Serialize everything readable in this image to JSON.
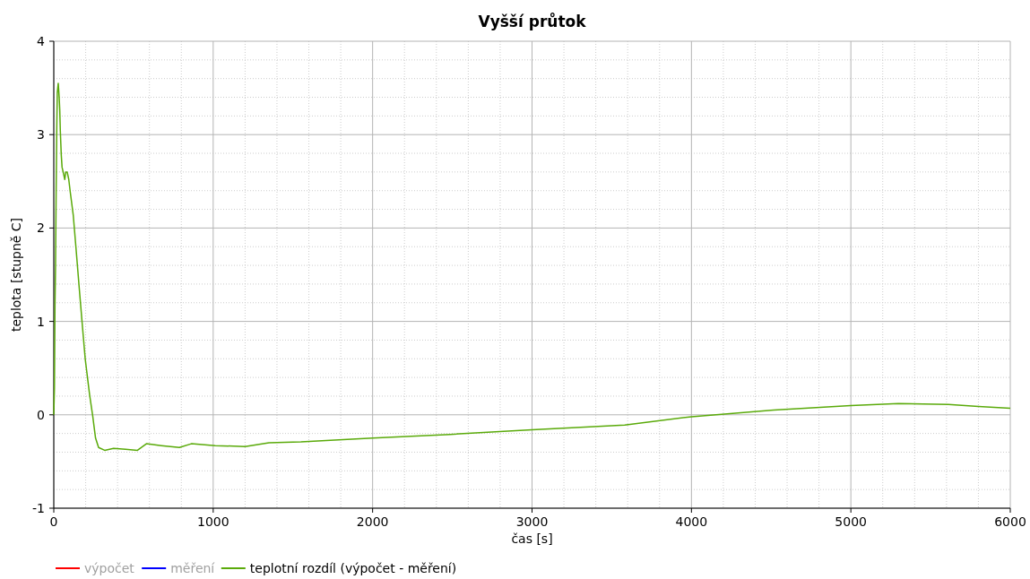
{
  "chart_data": {
    "type": "line",
    "title": "Vyšší průtok",
    "xlabel": "čas [s]",
    "ylabel": "teplota [stupně C]",
    "xlim": [
      0,
      6000
    ],
    "xticks": [
      0,
      1000,
      2000,
      3000,
      4000,
      5000,
      6000
    ],
    "ylim": [
      -1,
      4
    ],
    "yticks": [
      -1,
      0,
      1,
      2,
      3,
      4
    ],
    "grid": true,
    "legend": "bottom left",
    "line_style": "solid",
    "marker": "none",
    "series": [
      {
        "name": "výpočet",
        "color": "#ff0000"
      },
      {
        "name": "měření",
        "color": "#0000ff"
      },
      {
        "name": "teplotní rozdíl (výpočet - měření)",
        "color": "#5aaa0a",
        "x": [
          0,
          4,
          7.5,
          11,
          15,
          19,
          22,
          28,
          34,
          37.5,
          41,
          47,
          52,
          60,
          69,
          75,
          84,
          94,
          103,
          122,
          141,
          159,
          178,
          197,
          225,
          244,
          262,
          281,
          319,
          375,
          450,
          525,
          581,
          675,
          788,
          863,
          1013,
          1200,
          1350,
          1550,
          2000,
          2486,
          3000,
          3581,
          4000,
          4516,
          5000,
          5298,
          5612,
          5800,
          6000
        ],
        "values": [
          0,
          0.28,
          1.18,
          1.59,
          2.43,
          3.1,
          3.45,
          3.55,
          3.39,
          3.26,
          3.04,
          2.78,
          2.65,
          2.59,
          2.52,
          2.6,
          2.6,
          2.52,
          2.39,
          2.14,
          1.75,
          1.37,
          0.98,
          0.6,
          0.21,
          -0.01,
          -0.25,
          -0.35,
          -0.38,
          -0.36,
          -0.37,
          -0.38,
          -0.31,
          -0.33,
          -0.35,
          -0.31,
          -0.33,
          -0.34,
          -0.3,
          -0.29,
          -0.25,
          -0.21,
          -0.16,
          -0.11,
          -0.02,
          0.05,
          0.1,
          0.12,
          0.11,
          0.09,
          0.07
        ]
      }
    ]
  }
}
